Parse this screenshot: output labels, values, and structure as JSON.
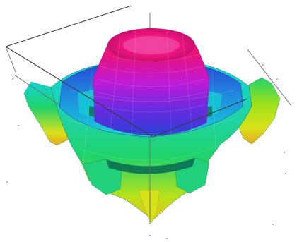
{
  "plot": {
    "surface_type": "3d-surface",
    "colormap": "hsv",
    "colors": {
      "peak": "#e8127a",
      "upper": "#c21ad6",
      "mid": "#2b3fd8",
      "lower": "#12d3d6",
      "low": "#1fd36a",
      "trough": "#d8e21a",
      "edge": "#e6a81a"
    },
    "box_visible": true,
    "grid": false,
    "legend": false
  }
}
